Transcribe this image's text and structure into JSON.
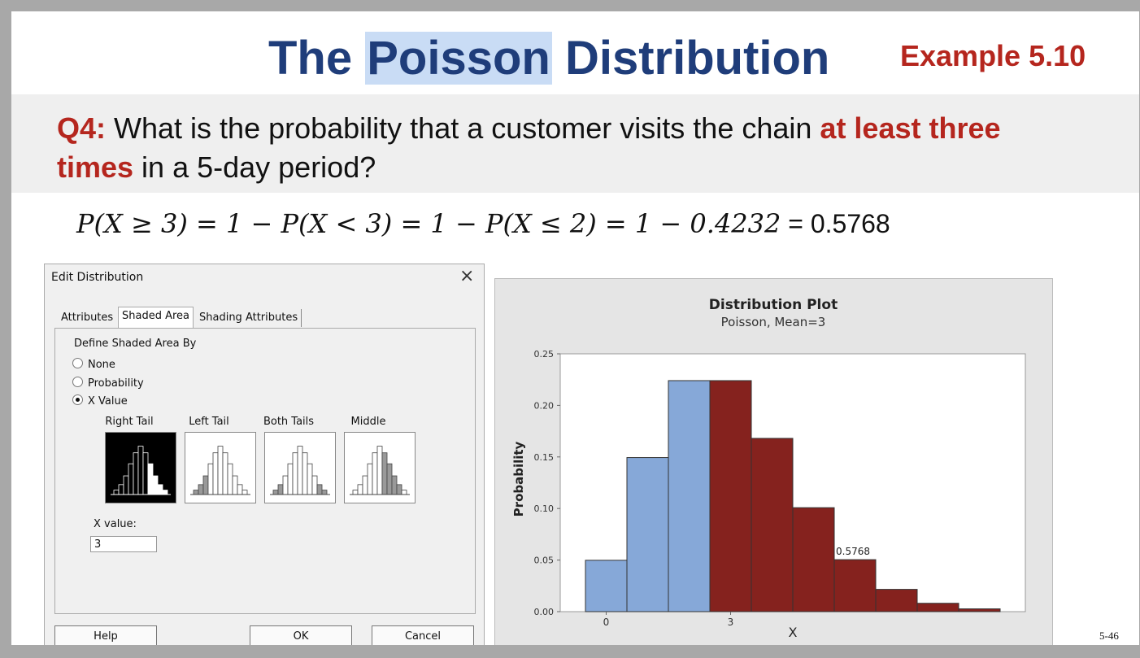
{
  "slide": {
    "title_pre": "The ",
    "title_highlight": "Poisson",
    "title_post": " Distribution",
    "example": "Example 5.10",
    "question": {
      "label": "Q4:",
      "text1": " What is the probability that a customer visits the chain ",
      "bold": "at least three times",
      "text2": " in a 5-day period?"
    },
    "formula": {
      "math": "P(X ≥ 3) = 1 − P(X < 3) = 1 − P(X ≤ 2) = 1 − 0.4232",
      "result": " = 0.5768"
    },
    "page_number": "5-46"
  },
  "dialog": {
    "title": "Edit Distribution",
    "close_glyph": "×",
    "tabs": [
      "Attributes",
      "Shaded Area",
      "Shading Attributes"
    ],
    "active_tab": "Shaded Area",
    "define_label": "Define Shaded Area By",
    "radio_options": [
      "None",
      "Probability",
      "X Value"
    ],
    "selected_radio": "X Value",
    "shade_options": [
      "Right Tail",
      "Left Tail",
      "Both Tails",
      "Middle"
    ],
    "selected_shade": "Right Tail",
    "x_value_label": "X value:",
    "x_value": "3",
    "buttons": {
      "help": "Help",
      "ok": "OK",
      "cancel": "Cancel"
    }
  },
  "chart_data": {
    "type": "bar",
    "title": "Distribution Plot",
    "subtitle": "Poisson, Mean=3",
    "xlabel": "X",
    "ylabel": "Probability",
    "x": [
      0,
      1,
      2,
      3,
      4,
      5,
      6,
      7,
      8,
      9
    ],
    "values": [
      0.0498,
      0.1494,
      0.224,
      0.224,
      0.168,
      0.1008,
      0.0504,
      0.0216,
      0.0081,
      0.0027
    ],
    "shaded_from_x": 3,
    "ylim": [
      0,
      0.25
    ],
    "yticks": [
      "0.00",
      "0.05",
      "0.10",
      "0.15",
      "0.20",
      "0.25"
    ],
    "xtick_labels": [
      {
        "x": 0,
        "label": "0"
      },
      {
        "x": 3,
        "label": "3"
      }
    ],
    "annotation": "0.5768",
    "colors": {
      "unshaded": "#86a8d8",
      "shaded": "#85221e",
      "plot_bg": "#ffffff",
      "frame_bg": "#e5e5e5"
    }
  }
}
